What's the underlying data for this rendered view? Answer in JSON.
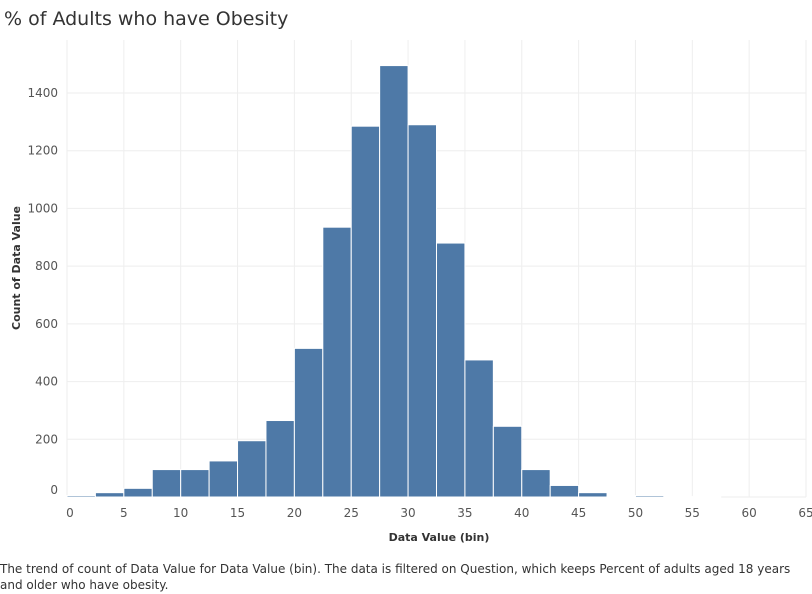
{
  "title": "% of Adults who have Obesity",
  "caption": "The trend of count of Data Value for Data Value (bin). The data is filtered on Question, which keeps Percent of adults aged 18 years and older who have obesity.",
  "chart_data": {
    "type": "bar",
    "title": "% of Adults who have Obesity",
    "xlabel": "Data Value (bin)",
    "ylabel": "Count of Data Value",
    "bin_width": 2.5,
    "xlim": [
      0,
      65
    ],
    "ylim": [
      0,
      1500
    ],
    "x_ticks": [
      0,
      5,
      10,
      15,
      20,
      25,
      30,
      35,
      40,
      45,
      50,
      55,
      60,
      65
    ],
    "y_ticks": [
      0,
      200,
      400,
      600,
      800,
      1000,
      1200,
      1400
    ],
    "grid": true,
    "bins": [
      {
        "start": 0,
        "value": 5
      },
      {
        "start": 2.5,
        "value": 15
      },
      {
        "start": 5,
        "value": 30
      },
      {
        "start": 7.5,
        "value": 95
      },
      {
        "start": 10,
        "value": 95
      },
      {
        "start": 12.5,
        "value": 125
      },
      {
        "start": 15,
        "value": 195
      },
      {
        "start": 17.5,
        "value": 265
      },
      {
        "start": 20,
        "value": 515
      },
      {
        "start": 22.5,
        "value": 935
      },
      {
        "start": 25,
        "value": 1285
      },
      {
        "start": 27.5,
        "value": 1495
      },
      {
        "start": 30,
        "value": 1290
      },
      {
        "start": 32.5,
        "value": 880
      },
      {
        "start": 35,
        "value": 475
      },
      {
        "start": 37.5,
        "value": 245
      },
      {
        "start": 40,
        "value": 95
      },
      {
        "start": 42.5,
        "value": 40
      },
      {
        "start": 45,
        "value": 15
      },
      {
        "start": 47.5,
        "value": 3
      },
      {
        "start": 50,
        "value": 5
      },
      {
        "start": 52.5,
        "value": 2
      },
      {
        "start": 55,
        "value": 1
      }
    ],
    "bar_color": "#4e79a7"
  }
}
